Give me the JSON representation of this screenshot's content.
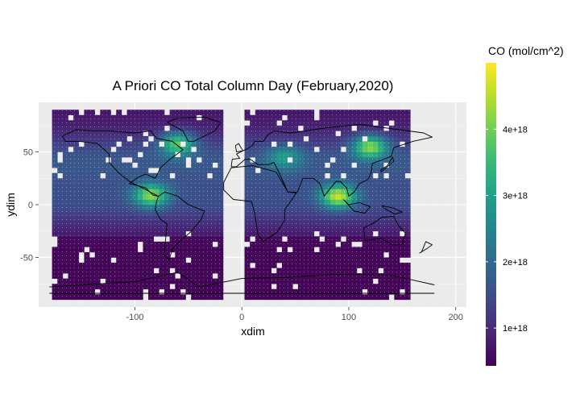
{
  "chart_data": {
    "type": "heatmap",
    "title": "A Priori CO Total Column Day (February,2020)",
    "xlabel": "xdim",
    "ylabel": "ydim",
    "xlim": [
      -190,
      210
    ],
    "ylim": [
      -97,
      97
    ],
    "x_ticks": [
      -100,
      0,
      100,
      200
    ],
    "x_tick_labels": [
      "-100",
      "0",
      "100",
      "200"
    ],
    "y_ticks": [
      -50,
      0,
      50
    ],
    "y_tick_labels": [
      "-50",
      "0",
      "50"
    ],
    "grid": true,
    "panel_background": "#ebebeb",
    "legend": {
      "title": "CO (mol/cm^2)",
      "position": "right",
      "min": 4.3e+17,
      "max": 5e+18,
      "ticks": [
        1e+18,
        2e+18,
        3e+18,
        4e+18
      ],
      "tick_labels": [
        "1e+18",
        "2e+18",
        "3e+18",
        "4e+18"
      ]
    },
    "colormap": "viridis",
    "colors": [
      "#440154",
      "#482878",
      "#3e4a89",
      "#31688e",
      "#26828e",
      "#1f9e89",
      "#35b779",
      "#6ece58",
      "#b5de2b",
      "#fde725"
    ],
    "data_extent": {
      "longitude": [
        -177.5,
        157.5
      ],
      "latitude": [
        -90,
        90
      ],
      "missing_swath_longitudes": [
        [
          -17.5,
          2.5
        ]
      ]
    },
    "hotspots": [
      {
        "lon": -60,
        "lat": 58,
        "value": 4.1e+18
      },
      {
        "lon": -85,
        "lat": 9,
        "value": 4.3e+18
      },
      {
        "lon": 90,
        "lat": 8,
        "value": 4.7e+18
      },
      {
        "lon": 120,
        "lat": 55,
        "value": 4.4e+18
      },
      {
        "lon": 40,
        "lat": 45,
        "value": 3e+18
      }
    ]
  }
}
